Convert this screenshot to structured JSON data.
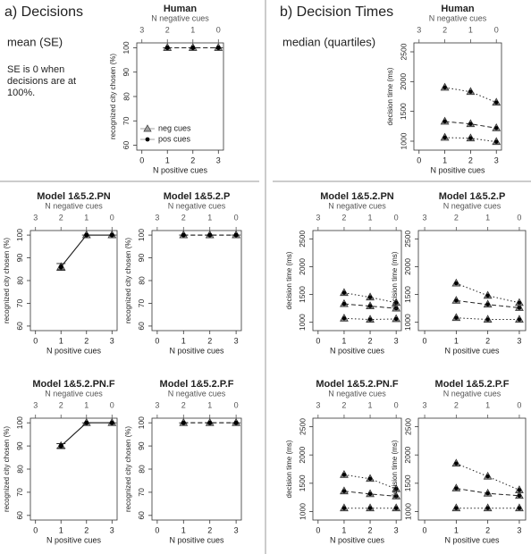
{
  "headings": {
    "a": {
      "title": "a) Decisions",
      "subtitle": "mean (SE)",
      "note": "SE is 0 when decisions are at 100%."
    },
    "b": {
      "title": "b) Decision Times",
      "subtitle": "median (quartiles)"
    }
  },
  "chart_data": [
    {
      "type": "line",
      "title": "Human",
      "xlabel": "N positive cues",
      "x2label": "N negative cues",
      "ylabel": "recognized city chosen (%)",
      "x": [
        1,
        2,
        3
      ],
      "xlim": [
        -0.2,
        3.2
      ],
      "xticks": [
        0,
        1,
        2,
        3
      ],
      "x2lim": [
        3.2,
        -0.2
      ],
      "x2ticks": [
        3,
        2,
        1,
        0
      ],
      "ylim": [
        58,
        102
      ],
      "yticks": [
        60,
        70,
        80,
        90,
        100
      ],
      "legend": "lower left",
      "series": [
        {
          "name": "neg cues",
          "color": "#a0a0a0",
          "marker": "triangle",
          "line_style": "dashed",
          "values": [
            100,
            100,
            100
          ]
        },
        {
          "name": "pos cues",
          "color": "#000000",
          "marker": "dot",
          "line_style": "dashed",
          "values": [
            100,
            100,
            100
          ],
          "errors": [
            0,
            0,
            0
          ]
        }
      ]
    },
    {
      "type": "line",
      "title": "Model 1&5.2.PN",
      "xlabel": "N positive cues",
      "x2label": "N negative cues",
      "ylabel": "recognized city chosen (%)",
      "x": [
        1,
        2,
        3
      ],
      "xlim": [
        -0.2,
        3.2
      ],
      "xticks": [
        0,
        1,
        2,
        3
      ],
      "x2lim": [
        3.2,
        -0.2
      ],
      "x2ticks": [
        3,
        2,
        1,
        0
      ],
      "ylim": [
        58,
        102
      ],
      "yticks": [
        60,
        70,
        80,
        90,
        100
      ],
      "series": [
        {
          "color": "#a0a0a0",
          "marker": "triangle",
          "line_style": "solid",
          "values": [
            86,
            100,
            100
          ]
        },
        {
          "color": "#000000",
          "marker": "dot",
          "line_style": "solid",
          "values": [
            86,
            100,
            100
          ],
          "errors": [
            1.5,
            0,
            0
          ]
        }
      ]
    },
    {
      "type": "line",
      "title": "Model 1&5.2.P",
      "xlabel": "N positive cues",
      "x2label": "N negative cues",
      "ylabel": "recognized city chosen (%)",
      "x": [
        1,
        2,
        3
      ],
      "xlim": [
        -0.2,
        3.2
      ],
      "xticks": [
        0,
        1,
        2,
        3
      ],
      "x2lim": [
        3.2,
        -0.2
      ],
      "x2ticks": [
        3,
        2,
        1,
        0
      ],
      "ylim": [
        58,
        102
      ],
      "yticks": [
        60,
        70,
        80,
        90,
        100
      ],
      "series": [
        {
          "color": "#a0a0a0",
          "marker": "triangle",
          "line_style": "dashed",
          "values": [
            100,
            100,
            100
          ]
        },
        {
          "color": "#000000",
          "marker": "dot",
          "line_style": "dashed",
          "values": [
            100,
            100,
            100
          ],
          "errors": [
            0,
            0,
            0
          ]
        }
      ]
    },
    {
      "type": "line",
      "title": "Model 1&5.2.PN.F",
      "xlabel": "N positive cues",
      "x2label": "N negative cues",
      "ylabel": "recognized city chosen (%)",
      "x": [
        1,
        2,
        3
      ],
      "xlim": [
        -0.2,
        3.2
      ],
      "xticks": [
        0,
        1,
        2,
        3
      ],
      "x2lim": [
        3.2,
        -0.2
      ],
      "x2ticks": [
        3,
        2,
        1,
        0
      ],
      "ylim": [
        58,
        102
      ],
      "yticks": [
        60,
        70,
        80,
        90,
        100
      ],
      "series": [
        {
          "color": "#a0a0a0",
          "marker": "triangle",
          "line_style": "solid",
          "values": [
            90,
            100,
            100
          ]
        },
        {
          "color": "#000000",
          "marker": "dot",
          "line_style": "solid",
          "values": [
            90,
            100,
            100
          ],
          "errors": [
            1,
            0,
            0
          ]
        }
      ]
    },
    {
      "type": "line",
      "title": "Model 1&5.2.P.F",
      "xlabel": "N positive cues",
      "x2label": "N negative cues",
      "ylabel": "recognized city chosen (%)",
      "x": [
        1,
        2,
        3
      ],
      "xlim": [
        -0.2,
        3.2
      ],
      "xticks": [
        0,
        1,
        2,
        3
      ],
      "x2lim": [
        3.2,
        -0.2
      ],
      "x2ticks": [
        3,
        2,
        1,
        0
      ],
      "ylim": [
        58,
        102
      ],
      "yticks": [
        60,
        70,
        80,
        90,
        100
      ],
      "series": [
        {
          "color": "#a0a0a0",
          "marker": "triangle",
          "line_style": "dashed",
          "values": [
            100,
            100,
            100
          ]
        },
        {
          "color": "#000000",
          "marker": "dot",
          "line_style": "dashed",
          "values": [
            100,
            100,
            100
          ],
          "errors": [
            0,
            0,
            0
          ]
        }
      ]
    },
    {
      "type": "line",
      "title": "Human",
      "xlabel": "N positive cues",
      "x2label": "N negative cues",
      "ylabel": "decision time (ms)",
      "x": [
        1,
        2,
        3
      ],
      "xlim": [
        -0.2,
        3.2
      ],
      "xticks": [
        0,
        1,
        2,
        3
      ],
      "x2lim": [
        3.2,
        -0.2
      ],
      "x2ticks": [
        3,
        2,
        1,
        0
      ],
      "ylim": [
        850,
        2650
      ],
      "yticks": [
        1000,
        1500,
        2000,
        2500
      ],
      "series": [
        {
          "color": "#909090",
          "marker": "triangle-dot",
          "line_style": "dotted",
          "values": [
            1900,
            1830,
            1650
          ]
        },
        {
          "color": "#909090",
          "marker": "triangle-dot",
          "line_style": "dashed",
          "values": [
            1330,
            1290,
            1220
          ]
        },
        {
          "color": "#909090",
          "marker": "triangle-dot",
          "line_style": "dotted",
          "values": [
            1060,
            1050,
            990
          ]
        }
      ]
    },
    {
      "type": "line",
      "title": "Model 1&5.2.PN",
      "xlabel": "N positive cues",
      "x2label": "N negative cues",
      "ylabel": "decision time (ms)",
      "x": [
        1,
        2,
        3
      ],
      "xlim": [
        -0.2,
        3.2
      ],
      "xticks": [
        0,
        1,
        2,
        3
      ],
      "x2lim": [
        3.2,
        -0.2
      ],
      "x2ticks": [
        3,
        2,
        1,
        0
      ],
      "ylim": [
        850,
        2650
      ],
      "yticks": [
        1000,
        1500,
        2000,
        2500
      ],
      "series": [
        {
          "color": "#909090",
          "marker": "triangle-dot",
          "line_style": "dotted",
          "values": [
            1530,
            1450,
            1350
          ]
        },
        {
          "color": "#909090",
          "marker": "triangle-dot",
          "line_style": "dashed",
          "values": [
            1330,
            1290,
            1250
          ]
        },
        {
          "color": "#909090",
          "marker": "triangle-dot",
          "line_style": "dotted",
          "values": [
            1070,
            1050,
            1060
          ]
        }
      ]
    },
    {
      "type": "line",
      "title": "Model 1&5.2.P",
      "xlabel": "N positive cues",
      "x2label": "N negative cues",
      "ylabel": "decision time (ms)",
      "x": [
        1,
        2,
        3
      ],
      "xlim": [
        -0.2,
        3.2
      ],
      "xticks": [
        0,
        1,
        2,
        3
      ],
      "x2lim": [
        3.2,
        -0.2
      ],
      "x2ticks": [
        3,
        2,
        1,
        0
      ],
      "ylim": [
        850,
        2650
      ],
      "yticks": [
        1000,
        1500,
        2000,
        2500
      ],
      "series": [
        {
          "color": "#909090",
          "marker": "triangle-dot",
          "line_style": "dotted",
          "values": [
            1700,
            1480,
            1350
          ]
        },
        {
          "color": "#909090",
          "marker": "triangle-dot",
          "line_style": "dashed",
          "values": [
            1390,
            1320,
            1260
          ]
        },
        {
          "color": "#909090",
          "marker": "triangle-dot",
          "line_style": "dotted",
          "values": [
            1080,
            1050,
            1050
          ]
        }
      ]
    },
    {
      "type": "line",
      "title": "Model 1&5.2.PN.F",
      "xlabel": "N positive cues",
      "x2label": "N negative cues",
      "ylabel": "decision time (ms)",
      "x": [
        1,
        2,
        3
      ],
      "xlim": [
        -0.2,
        3.2
      ],
      "xticks": [
        0,
        1,
        2,
        3
      ],
      "x2lim": [
        3.2,
        -0.2
      ],
      "x2ticks": [
        3,
        2,
        1,
        0
      ],
      "ylim": [
        850,
        2650
      ],
      "yticks": [
        1000,
        1500,
        2000,
        2500
      ],
      "series": [
        {
          "color": "#909090",
          "marker": "triangle-dot",
          "line_style": "dotted",
          "values": [
            1650,
            1580,
            1400
          ]
        },
        {
          "color": "#909090",
          "marker": "triangle-dot",
          "line_style": "dashed",
          "values": [
            1360,
            1310,
            1270
          ]
        },
        {
          "color": "#909090",
          "marker": "triangle-dot",
          "line_style": "dotted",
          "values": [
            1060,
            1060,
            1060
          ]
        }
      ]
    },
    {
      "type": "line",
      "title": "Model 1&5.2.P.F",
      "xlabel": "N positive cues",
      "x2label": "N negative cues",
      "ylabel": "decision time (ms)",
      "x": [
        1,
        2,
        3
      ],
      "xlim": [
        -0.2,
        3.2
      ],
      "xticks": [
        0,
        1,
        2,
        3
      ],
      "x2lim": [
        3.2,
        -0.2
      ],
      "x2ticks": [
        3,
        2,
        1,
        0
      ],
      "ylim": [
        850,
        2650
      ],
      "yticks": [
        1000,
        1500,
        2000,
        2500
      ],
      "series": [
        {
          "color": "#909090",
          "marker": "triangle-dot",
          "line_style": "dotted",
          "values": [
            1850,
            1620,
            1380
          ]
        },
        {
          "color": "#909090",
          "marker": "triangle-dot",
          "line_style": "dashed",
          "values": [
            1410,
            1320,
            1280
          ]
        },
        {
          "color": "#909090",
          "marker": "triangle-dot",
          "line_style": "dotted",
          "values": [
            1060,
            1060,
            1060
          ]
        }
      ]
    }
  ]
}
